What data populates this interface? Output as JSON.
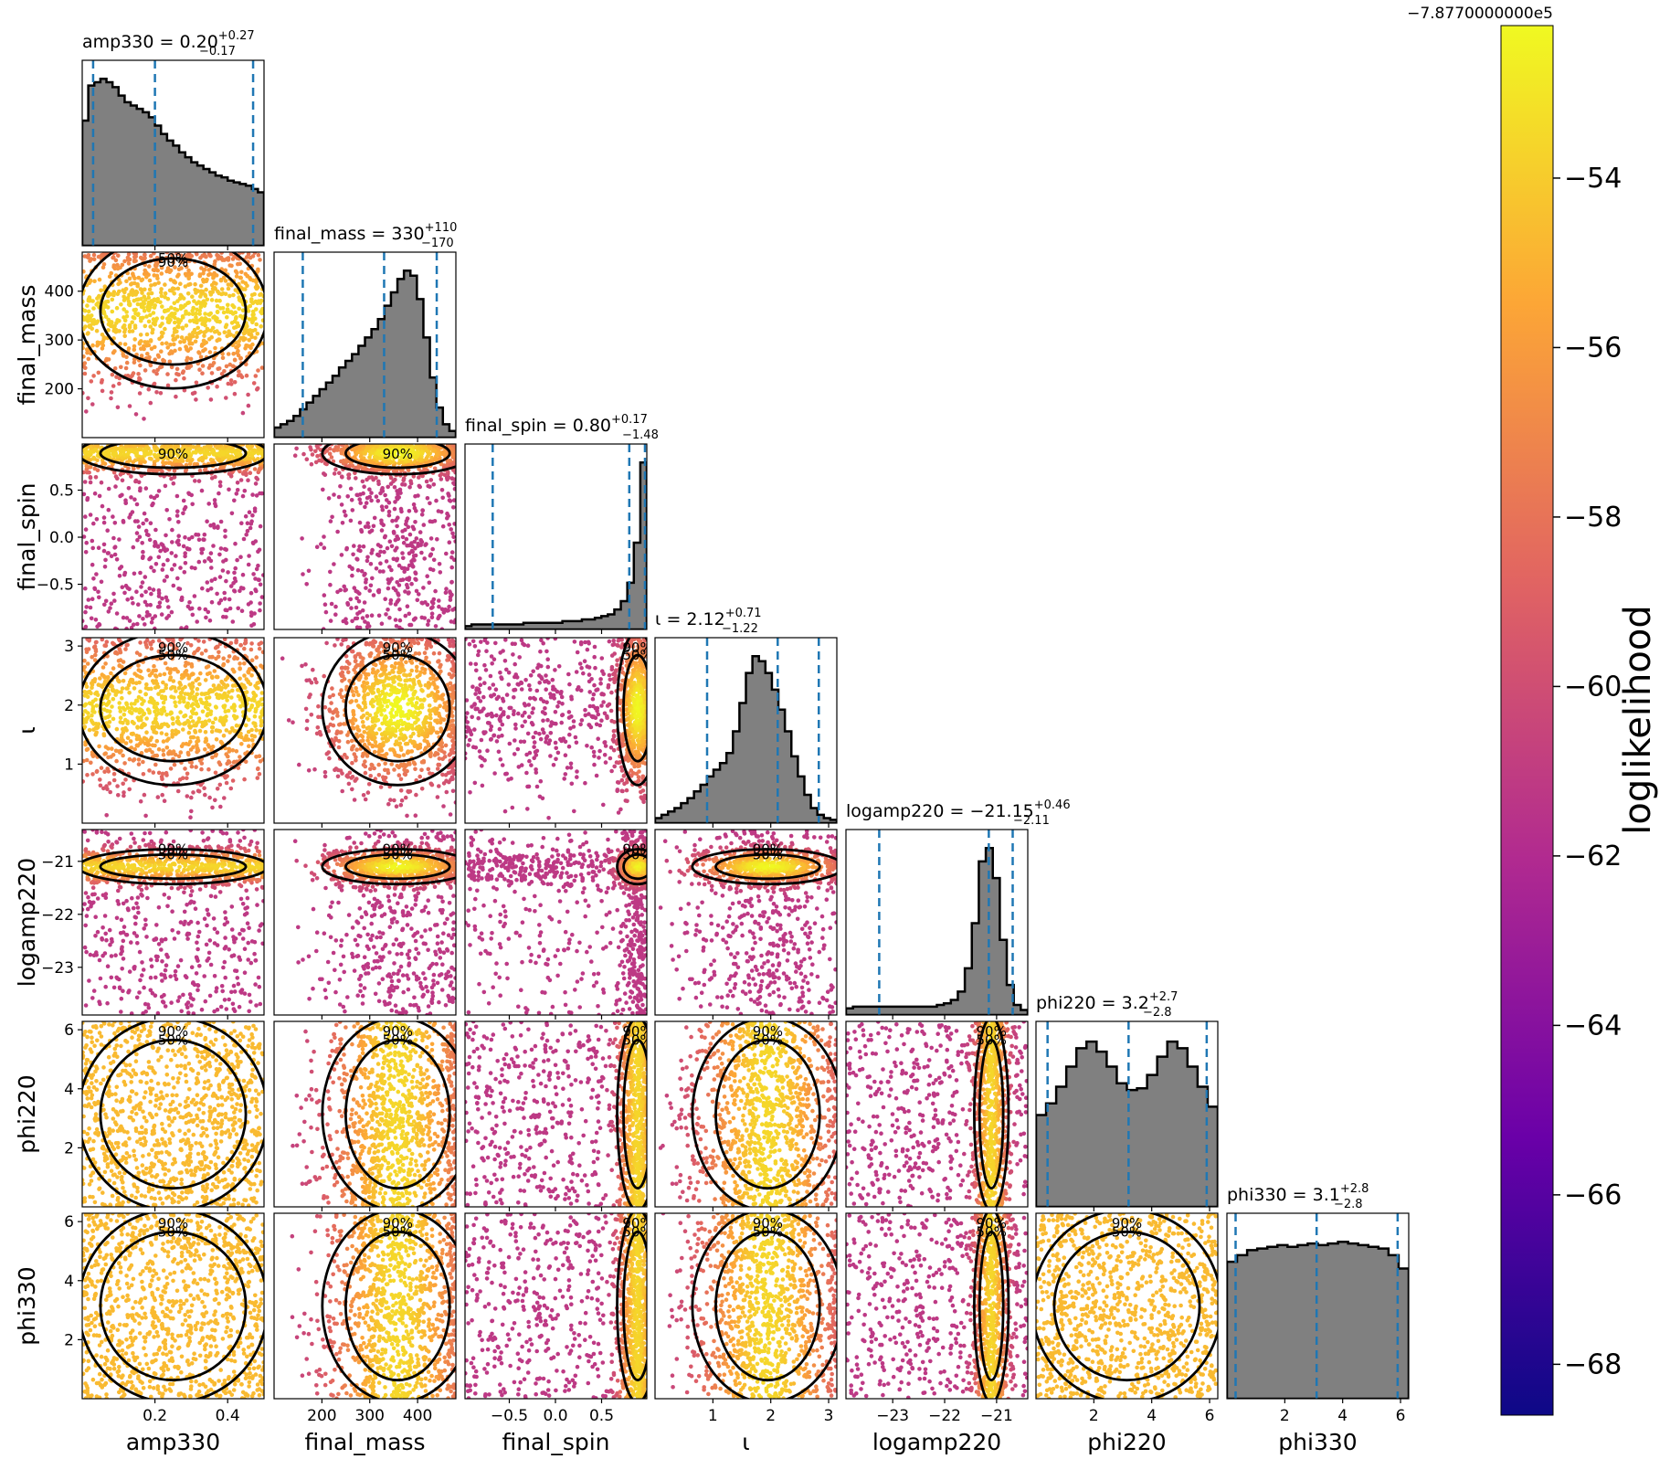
{
  "chart_data": {
    "type": "scatter",
    "subtype": "corner-plot",
    "parameters": [
      "amp330",
      "final_mass",
      "final_spin",
      "ι",
      "logamp220",
      "phi220",
      "phi330"
    ],
    "ranges": {
      "amp330": [
        0.0,
        0.5
      ],
      "final_mass": [
        100,
        480
      ],
      "final_spin": [
        -0.98,
        0.99
      ],
      "ι": [
        0.0,
        3.1416
      ],
      "logamp220": [
        -23.9,
        -20.4
      ],
      "phi220": [
        0.0,
        6.2832
      ],
      "phi330": [
        0.0,
        6.2832
      ]
    },
    "titles": [
      {
        "param": "amp330",
        "name": "amp330",
        "value": "0.20",
        "plus": "+0.27",
        "minus": "−0.17"
      },
      {
        "param": "final_mass",
        "name": "final_mass",
        "value": "330",
        "plus": "+110",
        "minus": "−170"
      },
      {
        "param": "final_spin",
        "name": "final_spin",
        "value": "0.80",
        "plus": "+0.17",
        "minus": "−1.48"
      },
      {
        "param": "ι",
        "name": "ι",
        "value": "2.12",
        "plus": "+0.71",
        "minus": "−1.22"
      },
      {
        "param": "logamp220",
        "name": "logamp220",
        "value": "−21.15",
        "plus": "+0.46",
        "minus": "−2.11"
      },
      {
        "param": "phi220",
        "name": "phi220",
        "value": "3.2",
        "plus": "+2.7",
        "minus": "−2.8"
      },
      {
        "param": "phi330",
        "name": "phi330",
        "value": "3.1",
        "plus": "+2.8",
        "minus": "−2.8"
      }
    ],
    "quantile_lines": {
      "amp330": [
        0.03,
        0.2,
        0.47
      ],
      "final_mass": [
        160,
        330,
        440
      ],
      "final_spin": [
        -0.68,
        0.8,
        0.97
      ],
      "ι": [
        0.9,
        2.12,
        2.83
      ],
      "logamp220": [
        -23.26,
        -21.15,
        -20.69
      ],
      "phi220": [
        0.4,
        3.2,
        5.9
      ],
      "phi330": [
        0.3,
        3.1,
        5.9
      ]
    },
    "histograms": {
      "amp330": [
        0.75,
        0.96,
        0.98,
        1.0,
        0.98,
        0.95,
        0.9,
        0.86,
        0.84,
        0.82,
        0.8,
        0.77,
        0.72,
        0.67,
        0.63,
        0.6,
        0.56,
        0.53,
        0.5,
        0.48,
        0.46,
        0.44,
        0.42,
        0.41,
        0.39,
        0.38,
        0.37,
        0.36,
        0.34,
        0.32
      ],
      "final_mass": [
        0.06,
        0.08,
        0.1,
        0.13,
        0.17,
        0.21,
        0.25,
        0.29,
        0.33,
        0.37,
        0.42,
        0.46,
        0.5,
        0.55,
        0.6,
        0.65,
        0.71,
        0.79,
        0.87,
        0.95,
        1.0,
        0.97,
        0.83,
        0.6,
        0.36,
        0.18,
        0.08,
        0.04
      ],
      "final_spin": [
        0.02,
        0.03,
        0.03,
        0.03,
        0.03,
        0.03,
        0.03,
        0.03,
        0.03,
        0.04,
        0.04,
        0.04,
        0.04,
        0.04,
        0.04,
        0.05,
        0.05,
        0.05,
        0.06,
        0.06,
        0.07,
        0.08,
        0.09,
        0.12,
        0.17,
        0.28,
        0.52,
        1.0
      ],
      "ι": [
        0.03,
        0.05,
        0.07,
        0.09,
        0.12,
        0.15,
        0.19,
        0.23,
        0.28,
        0.32,
        0.36,
        0.42,
        0.55,
        0.72,
        0.9,
        1.0,
        0.97,
        0.9,
        0.8,
        0.68,
        0.55,
        0.4,
        0.28,
        0.17,
        0.09,
        0.05,
        0.03,
        0.02
      ],
      "logamp220": [
        0.04,
        0.05,
        0.05,
        0.05,
        0.05,
        0.05,
        0.05,
        0.05,
        0.05,
        0.05,
        0.05,
        0.05,
        0.05,
        0.06,
        0.07,
        0.09,
        0.14,
        0.28,
        0.55,
        0.92,
        1.0,
        0.82,
        0.45,
        0.18,
        0.06,
        0.03
      ],
      "phi220": [
        0.55,
        0.62,
        0.72,
        0.84,
        0.95,
        0.99,
        0.93,
        0.84,
        0.74,
        0.7,
        0.71,
        0.79,
        0.9,
        0.99,
        0.95,
        0.84,
        0.72,
        0.6
      ],
      "phi330": [
        0.82,
        0.86,
        0.89,
        0.9,
        0.91,
        0.92,
        0.91,
        0.92,
        0.93,
        0.92,
        0.93,
        0.94,
        0.93,
        0.92,
        0.91,
        0.9,
        0.86,
        0.78
      ]
    },
    "contour_levels": [
      "50%",
      "90%"
    ],
    "tick_labels": {
      "amp330": [
        "0.2",
        "0.4"
      ],
      "final_mass": [
        "200",
        "300",
        "400"
      ],
      "final_spin": [
        "−0.5",
        "0.0",
        "0.5"
      ],
      "ι": [
        "1",
        "2",
        "3"
      ],
      "logamp220": [
        "−23",
        "−22",
        "−21"
      ],
      "phi220": [
        "2",
        "4",
        "6"
      ],
      "phi330": [
        "2",
        "4",
        "6"
      ]
    },
    "axis_labels": {
      "amp330": "amp330",
      "final_mass": "final_mass",
      "final_spin": "final_spin",
      "ι": "ι",
      "logamp220": "logamp220",
      "phi220": "phi220",
      "phi330": "phi330"
    },
    "colorbar": {
      "label": "loglikelihood",
      "offset_text": "−7.8770000000e5",
      "ticks": [
        "−54",
        "−56",
        "−58",
        "−60",
        "−62",
        "−64",
        "−66",
        "−68"
      ],
      "tick_values": [
        -54,
        -56,
        -58,
        -60,
        -62,
        -64,
        -66,
        -68
      ],
      "range": [
        -68.6,
        -52.2
      ],
      "colormap": "plasma"
    },
    "colors": {
      "histogram_fill": "#808080",
      "quantile_line": "#1f77b4",
      "contour": "#000000",
      "cmap_stops": [
        "#0d0887",
        "#6a00a8",
        "#b12a90",
        "#e16462",
        "#fca636",
        "#f0f921"
      ]
    }
  }
}
